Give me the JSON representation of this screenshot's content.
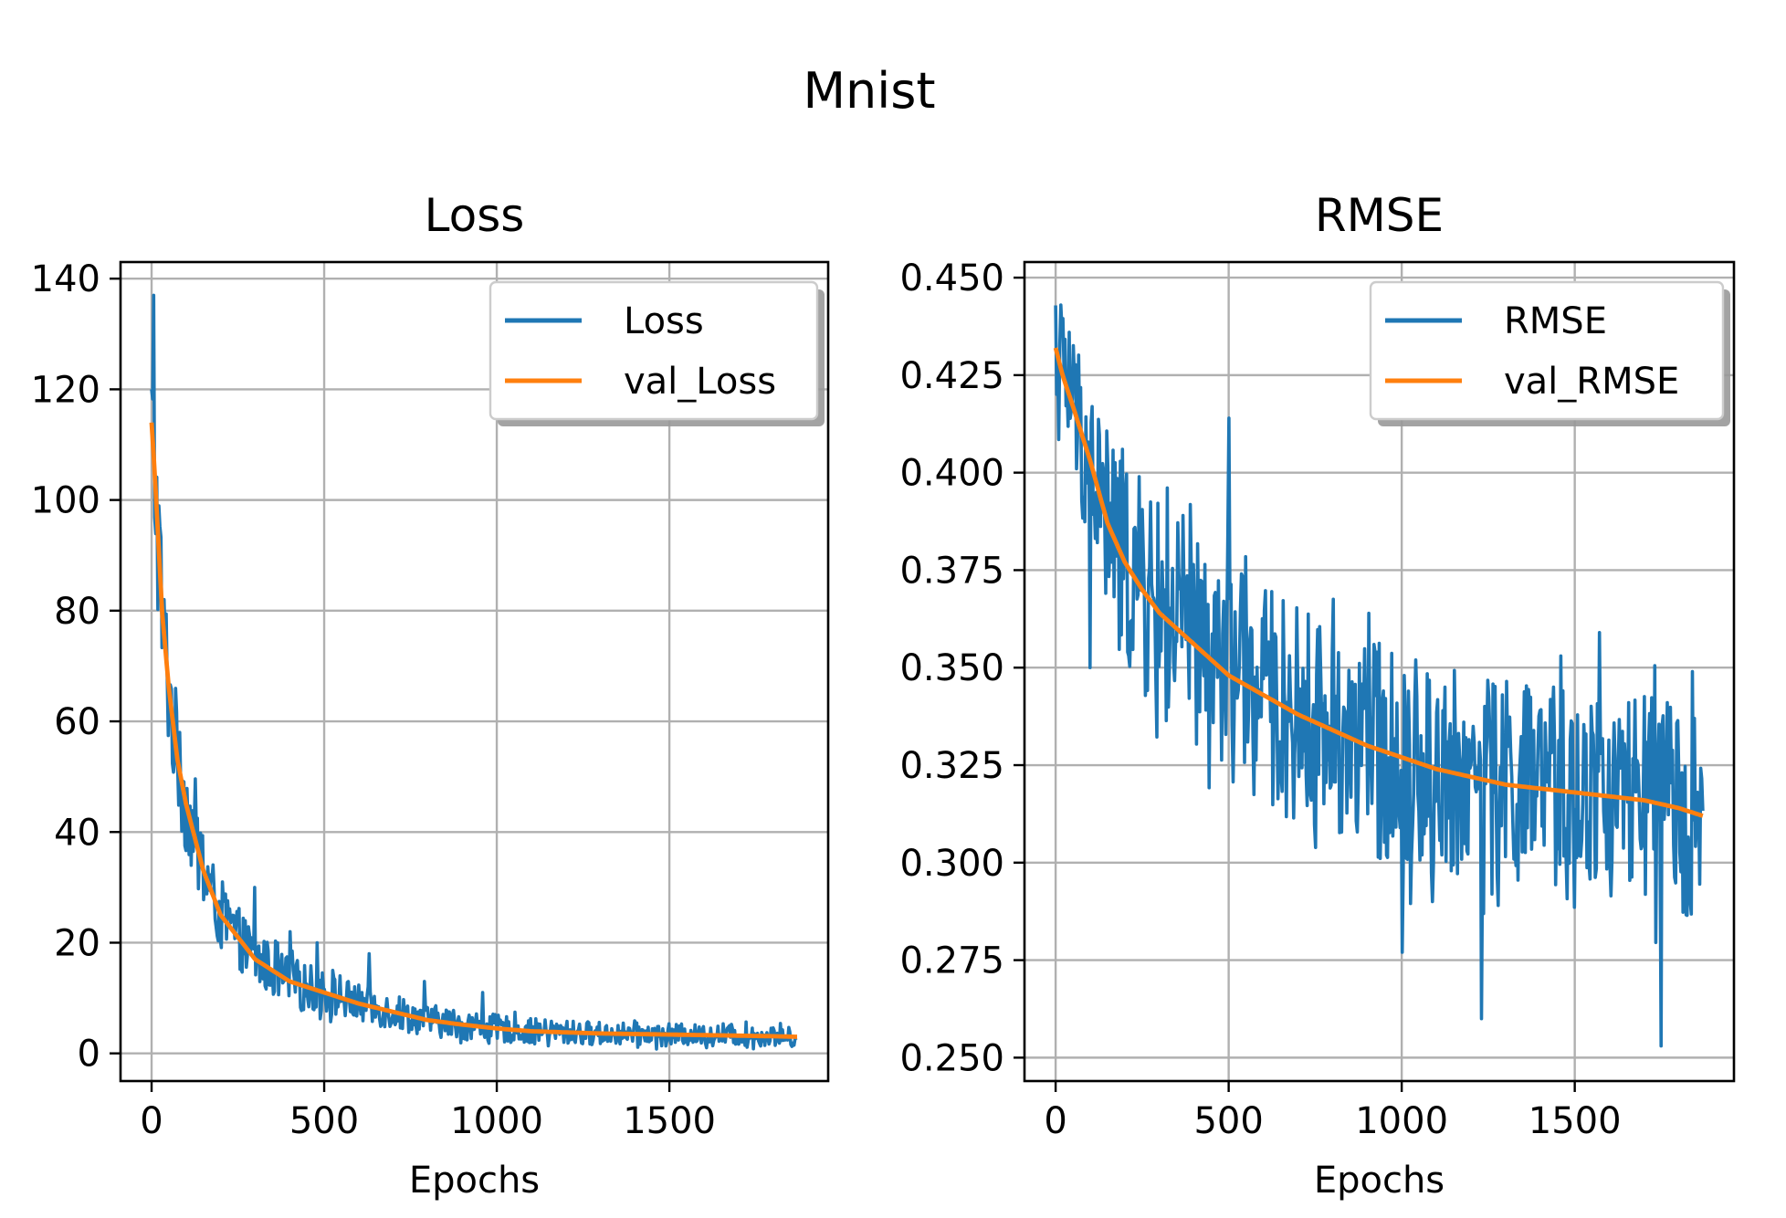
{
  "figure": {
    "title": "Mnist"
  },
  "colors": {
    "train": "#1f77b4",
    "val": "#ff7f0e",
    "grid": "#b0b0b0"
  },
  "chart_data": [
    {
      "type": "line",
      "title": "Loss",
      "xlabel": "Epochs",
      "ylabel": "",
      "xlim": [
        -90,
        1960
      ],
      "ylim": [
        -5,
        143
      ],
      "xticks": [
        0,
        500,
        1000,
        1500
      ],
      "xtick_labels": [
        "0",
        "500",
        "1000",
        "1500"
      ],
      "yticks": [
        0,
        20,
        40,
        60,
        80,
        100,
        120,
        140
      ],
      "ytick_labels": [
        "0",
        "20",
        "40",
        "60",
        "80",
        "100",
        "120",
        "140"
      ],
      "grid": true,
      "legend_position": "upper right",
      "series": [
        {
          "name": "Loss",
          "color": "#1f77b4",
          "noisy": true,
          "x": [
            0,
            10,
            20,
            30,
            50,
            75,
            100,
            150,
            200,
            250,
            300,
            400,
            500,
            600,
            700,
            800,
            900,
            1000,
            1100,
            1200,
            1300,
            1400,
            1500,
            1600,
            1700,
            1800,
            1870
          ],
          "y": [
            114,
            104,
            92,
            80,
            66,
            53,
            45,
            33,
            25,
            21,
            17,
            13,
            11,
            9,
            7.5,
            6,
            5.2,
            4.5,
            4,
            3.8,
            3.6,
            3.5,
            3.4,
            3.3,
            3.2,
            3.1,
            3.0
          ],
          "spread": [
            14,
            16,
            16,
            14,
            12,
            10,
            9,
            7.5,
            6.5,
            5.5,
            5,
            4.5,
            4,
            3.5,
            3.2,
            2.9,
            2.7,
            2.5,
            2.3,
            2.2,
            2.1,
            2,
            2,
            1.9,
            1.9,
            1.8,
            1.8
          ],
          "peaks": [
            [
              5,
              137
            ],
            [
              35,
              82
            ],
            [
              50,
              66
            ],
            [
              80,
              58
            ],
            [
              180,
              30
            ],
            [
              300,
              30
            ],
            [
              400,
              22
            ],
            [
              480,
              20
            ],
            [
              630,
              18
            ],
            [
              790,
              13
            ],
            [
              960,
              11
            ]
          ]
        },
        {
          "name": "val_Loss",
          "color": "#ff7f0e",
          "noisy": false,
          "x": [
            0,
            10,
            20,
            30,
            50,
            75,
            100,
            150,
            200,
            250,
            300,
            400,
            500,
            600,
            700,
            800,
            900,
            1000,
            1100,
            1200,
            1300,
            1400,
            1500,
            1600,
            1700,
            1800,
            1870
          ],
          "y": [
            114,
            104,
            92,
            80,
            66,
            53,
            45,
            33,
            25,
            21,
            17,
            13,
            11,
            9,
            7.5,
            6,
            5.2,
            4.5,
            4,
            3.8,
            3.6,
            3.5,
            3.4,
            3.3,
            3.2,
            3.1,
            3.0
          ]
        }
      ]
    },
    {
      "type": "line",
      "title": "RMSE",
      "xlabel": "Epochs",
      "ylabel": "",
      "xlim": [
        -90,
        1960
      ],
      "ylim": [
        0.244,
        0.454
      ],
      "xticks": [
        0,
        500,
        1000,
        1500
      ],
      "xtick_labels": [
        "0",
        "500",
        "1000",
        "1500"
      ],
      "yticks": [
        0.25,
        0.275,
        0.3,
        0.325,
        0.35,
        0.375,
        0.4,
        0.425,
        0.45
      ],
      "ytick_labels": [
        "0.250",
        "0.275",
        "0.300",
        "0.325",
        "0.350",
        "0.375",
        "0.400",
        "0.425",
        "0.450"
      ],
      "grid": true,
      "legend_position": "upper right",
      "series": [
        {
          "name": "RMSE",
          "color": "#1f77b4",
          "noisy": true,
          "x": [
            0,
            20,
            50,
            100,
            150,
            200,
            250,
            300,
            400,
            500,
            600,
            700,
            800,
            900,
            1000,
            1100,
            1200,
            1300,
            1400,
            1500,
            1600,
            1700,
            1800,
            1870
          ],
          "y": [
            0.432,
            0.425,
            0.417,
            0.403,
            0.387,
            0.377,
            0.37,
            0.364,
            0.356,
            0.348,
            0.343,
            0.338,
            0.334,
            0.33,
            0.327,
            0.324,
            0.322,
            0.32,
            0.319,
            0.318,
            0.317,
            0.316,
            0.314,
            0.312
          ],
          "spread": [
            0.016,
            0.018,
            0.02,
            0.024,
            0.026,
            0.028,
            0.028,
            0.028,
            0.028,
            0.028,
            0.028,
            0.028,
            0.028,
            0.028,
            0.028,
            0.027,
            0.027,
            0.027,
            0.027,
            0.027,
            0.027,
            0.027,
            0.027,
            0.027
          ],
          "peaks": [
            [
              15,
              0.443
            ],
            [
              40,
              0.436
            ],
            [
              100,
              0.35
            ],
            [
              500,
              0.414
            ],
            [
              1000,
              0.277
            ],
            [
              1230,
              0.26
            ],
            [
              1090,
              0.29
            ],
            [
              1570,
              0.359
            ],
            [
              1750,
              0.253
            ],
            [
              1840,
              0.349
            ]
          ]
        },
        {
          "name": "val_RMSE",
          "color": "#ff7f0e",
          "noisy": false,
          "x": [
            0,
            20,
            50,
            100,
            150,
            200,
            250,
            300,
            400,
            500,
            600,
            700,
            800,
            900,
            1000,
            1100,
            1200,
            1300,
            1400,
            1500,
            1600,
            1700,
            1800,
            1870
          ],
          "y": [
            0.432,
            0.425,
            0.417,
            0.403,
            0.387,
            0.377,
            0.37,
            0.364,
            0.356,
            0.348,
            0.343,
            0.338,
            0.334,
            0.33,
            0.327,
            0.324,
            0.322,
            0.32,
            0.319,
            0.318,
            0.317,
            0.316,
            0.314,
            0.312
          ]
        }
      ]
    }
  ]
}
